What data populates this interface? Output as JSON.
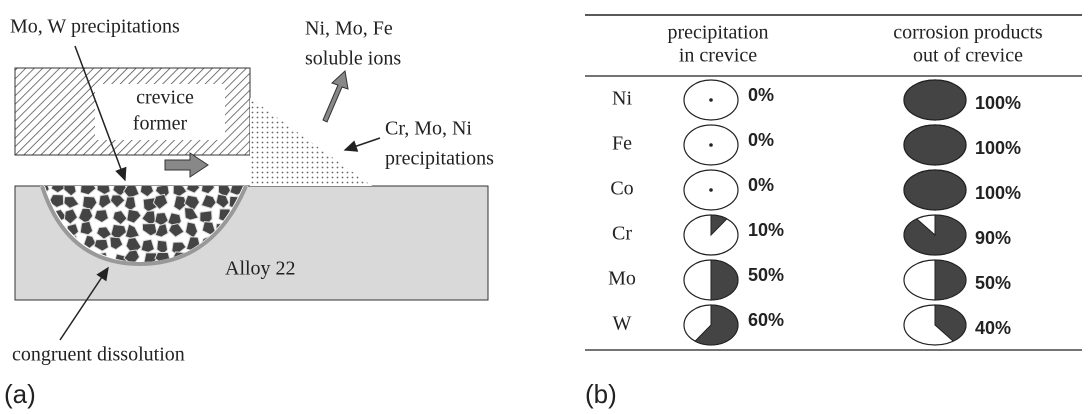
{
  "panel_a": {
    "tag": "(a)",
    "labels": {
      "mo_w": "Mo, W precipitations",
      "soluble_1": "Ni, Mo, Fe",
      "soluble_2": "soluble ions",
      "former_1": "crevice",
      "former_2": "former",
      "cr_mo_ni_1": "Cr, Mo, Ni",
      "cr_mo_ni_2": "precipitations",
      "alloy": "Alloy 22",
      "dissolution": "congruent dissolution"
    }
  },
  "panel_b": {
    "tag": "(b)",
    "table": {
      "columns": [
        {
          "line1": "precipitation",
          "line2": "in crevice"
        },
        {
          "line1": "corrosion products",
          "line2": "out of crevice"
        }
      ],
      "rows": [
        {
          "element": "Ni",
          "precipitation": {
            "value": 0,
            "label": "0%"
          },
          "corrosion": {
            "value": 100,
            "label": "100%"
          }
        },
        {
          "element": "Fe",
          "precipitation": {
            "value": 0,
            "label": "0%"
          },
          "corrosion": {
            "value": 100,
            "label": "100%"
          }
        },
        {
          "element": "Co",
          "precipitation": {
            "value": 0,
            "label": "0%"
          },
          "corrosion": {
            "value": 100,
            "label": "100%"
          }
        },
        {
          "element": "Cr",
          "precipitation": {
            "value": 10,
            "label": "10%"
          },
          "corrosion": {
            "value": 90,
            "label": "90%"
          }
        },
        {
          "element": "Mo",
          "precipitation": {
            "value": 50,
            "label": "50%"
          },
          "corrosion": {
            "value": 50,
            "label": "50%"
          }
        },
        {
          "element": "W",
          "precipitation": {
            "value": 60,
            "label": "60%"
          },
          "corrosion": {
            "value": 40,
            "label": "40%"
          }
        }
      ]
    }
  }
}
